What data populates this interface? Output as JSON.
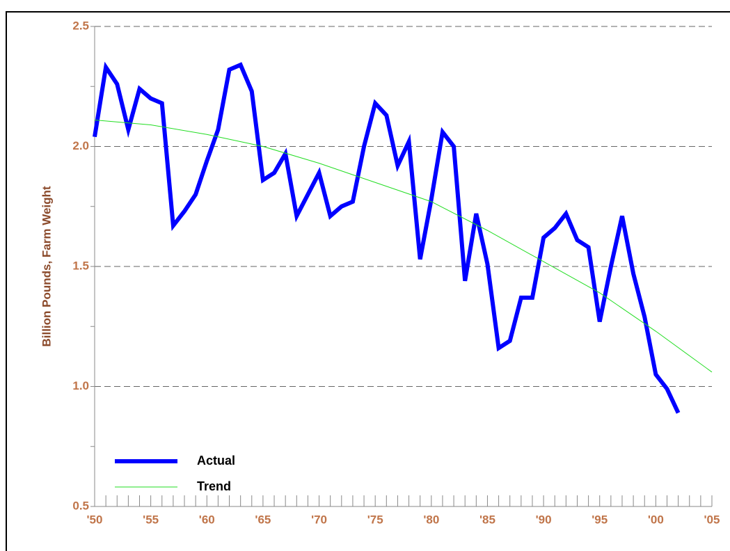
{
  "chart_data": {
    "type": "line",
    "ylabel": "Billion Pounds, Farm Weight",
    "xlim": [
      1950,
      2005
    ],
    "xticks": [
      {
        "value": 1950,
        "label": "'50"
      },
      {
        "value": 1955,
        "label": "'55"
      },
      {
        "value": 1960,
        "label": "'60"
      },
      {
        "value": 1965,
        "label": "'65"
      },
      {
        "value": 1970,
        "label": "'70"
      },
      {
        "value": 1975,
        "label": "'75"
      },
      {
        "value": 1980,
        "label": "'80"
      },
      {
        "value": 1985,
        "label": "'85"
      },
      {
        "value": 1990,
        "label": "'90"
      },
      {
        "value": 1995,
        "label": "'95"
      },
      {
        "value": 2000,
        "label": "'00"
      },
      {
        "value": 2005,
        "label": "'05"
      }
    ],
    "xminorticks": [
      1951,
      1952,
      1953,
      1954,
      1956,
      1957,
      1958,
      1959,
      1961,
      1962,
      1963,
      1964,
      1966,
      1967,
      1968,
      1969,
      1971,
      1972,
      1973,
      1974,
      1976,
      1977,
      1978,
      1979,
      1981,
      1982,
      1983,
      1984,
      1986,
      1987,
      1988,
      1989,
      1991,
      1992,
      1993,
      1994,
      1996,
      1997,
      1998,
      1999,
      2001,
      2002,
      2003,
      2004
    ],
    "ylim": [
      0.5,
      2.5
    ],
    "yticks": [
      0.5,
      {
        "value": 1.0,
        "label": "1.0"
      },
      1.5,
      {
        "value": 2.0,
        "label": "2.0"
      },
      2.5
    ],
    "yminorticks": [
      0.75,
      1.25,
      1.75,
      2.25
    ],
    "grid": true,
    "legend": "lower left",
    "series": [
      {
        "name": "Actual",
        "color": "#0000ff",
        "width": 6,
        "x": [
          1950,
          1951,
          1952,
          1953,
          1954,
          1955,
          1956,
          1957,
          1958,
          1959,
          1960,
          1961,
          1962,
          1963,
          1964,
          1965,
          1966,
          1967,
          1968,
          1969,
          1970,
          1971,
          1972,
          1973,
          1974,
          1975,
          1976,
          1977,
          1978,
          1979,
          1980,
          1981,
          1982,
          1983,
          1984,
          1985,
          1986,
          1987,
          1988,
          1989,
          1990,
          1991,
          1992,
          1993,
          1994,
          1995,
          1996,
          1997,
          1998,
          1999,
          2000,
          2001,
          2002
        ],
        "values": [
          2.04,
          2.33,
          2.26,
          2.07,
          2.24,
          2.2,
          2.18,
          1.67,
          1.73,
          1.8,
          1.94,
          2.07,
          2.32,
          2.34,
          2.23,
          1.86,
          1.89,
          1.97,
          1.71,
          1.8,
          1.89,
          1.71,
          1.75,
          1.77,
          2.0,
          2.18,
          2.13,
          1.92,
          2.02,
          1.53,
          1.78,
          2.06,
          2.0,
          1.44,
          1.72,
          1.51,
          1.16,
          1.19,
          1.37,
          1.37,
          1.62,
          1.66,
          1.72,
          1.61,
          1.58,
          1.27,
          1.5,
          1.71,
          1.47,
          1.29,
          1.05,
          0.99,
          0.89
        ]
      },
      {
        "name": "Trend",
        "color": "#22dd22",
        "width": 1,
        "x": [
          1950,
          1955,
          1960,
          1965,
          1970,
          1975,
          1980,
          1985,
          1990,
          1995,
          2000,
          2005
        ],
        "values": [
          2.11,
          2.09,
          2.05,
          2.0,
          1.93,
          1.85,
          1.77,
          1.65,
          1.52,
          1.39,
          1.23,
          1.06
        ]
      }
    ]
  }
}
